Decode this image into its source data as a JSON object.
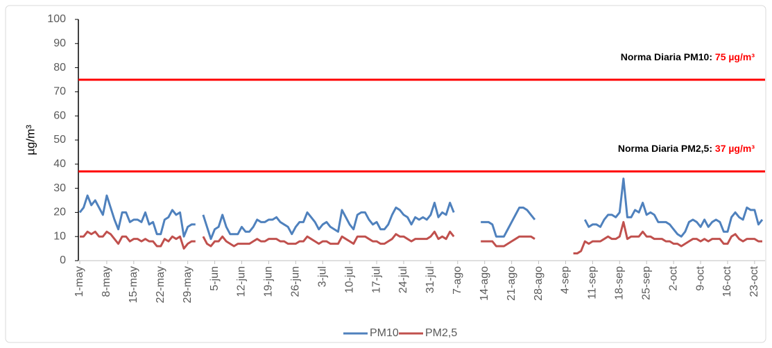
{
  "chart_data": {
    "type": "line",
    "y_label": "µg/m³",
    "ylim": [
      0,
      100
    ],
    "yticks": [
      0,
      10,
      20,
      30,
      40,
      50,
      60,
      70,
      80,
      90,
      100
    ],
    "grid": false,
    "legend": "bottom",
    "categories": [
      "1-may",
      null,
      null,
      null,
      null,
      null,
      null,
      "8-may",
      null,
      null,
      null,
      null,
      null,
      null,
      "15-may",
      null,
      null,
      null,
      null,
      null,
      null,
      "22-may",
      null,
      null,
      null,
      null,
      null,
      null,
      "29-may",
      null,
      null,
      null,
      null,
      null,
      null,
      "5-jun",
      null,
      null,
      null,
      null,
      null,
      null,
      "12-jun",
      null,
      null,
      null,
      null,
      null,
      null,
      "19-jun",
      null,
      null,
      null,
      null,
      null,
      null,
      "26-jun",
      null,
      null,
      null,
      null,
      null,
      null,
      "3-jul",
      null,
      null,
      null,
      null,
      null,
      null,
      "10-jul",
      null,
      null,
      null,
      null,
      null,
      null,
      "17-jul",
      null,
      null,
      null,
      null,
      null,
      null,
      "24-jul",
      null,
      null,
      null,
      null,
      null,
      null,
      "31-jul",
      null,
      null,
      null,
      null,
      null,
      null,
      "7-ago",
      null,
      null,
      null,
      null,
      null,
      null,
      "14-ago",
      null,
      null,
      null,
      null,
      null,
      null,
      "21-ago",
      null,
      null,
      null,
      null,
      null,
      null,
      "28-ago",
      null,
      null,
      null,
      null,
      null,
      null,
      "4-sep",
      null,
      null,
      null,
      null,
      null,
      null,
      "11-sep",
      null,
      null,
      null,
      null,
      null,
      null,
      "18-sep",
      null,
      null,
      null,
      null,
      null,
      null,
      "25-sep",
      null,
      null,
      null,
      null,
      null,
      null,
      "2-oct",
      null,
      null,
      null,
      null,
      null,
      null,
      "9-oct",
      null,
      null,
      null,
      null,
      null,
      null,
      "16-oct",
      null,
      null,
      null,
      null,
      null,
      null,
      "23-oct",
      null,
      null
    ],
    "series": [
      {
        "name": "PM10",
        "color": "#4f81bd",
        "values": [
          20,
          22,
          27,
          23,
          25,
          22,
          19,
          27,
          22,
          17,
          13,
          20,
          20,
          16,
          17,
          17,
          16,
          20,
          15,
          16,
          11,
          11,
          17,
          18,
          21,
          19,
          20,
          10,
          14,
          15,
          15,
          null,
          19,
          14,
          9,
          13,
          14,
          19,
          14,
          11,
          11,
          11,
          14,
          12,
          12,
          14,
          17,
          16,
          16,
          17,
          17,
          18,
          16,
          15,
          14,
          11,
          14,
          16,
          16,
          20,
          18,
          16,
          13,
          15,
          16,
          14,
          13,
          12,
          21,
          18,
          15,
          13,
          19,
          20,
          20,
          17,
          15,
          16,
          13,
          13,
          15,
          19,
          22,
          21,
          19,
          18,
          15,
          18,
          17,
          18,
          17,
          19,
          24,
          18,
          20,
          19,
          24,
          20,
          null,
          null,
          null,
          null,
          null,
          null,
          16,
          16,
          16,
          15,
          10,
          10,
          10,
          13,
          16,
          19,
          22,
          22,
          21,
          19,
          17,
          null,
          null,
          null,
          null,
          null,
          null,
          null,
          null,
          null,
          null,
          null,
          null,
          17,
          14,
          15,
          15,
          14,
          17,
          19,
          19,
          18,
          20,
          34,
          18,
          18,
          21,
          20,
          24,
          19,
          20,
          19,
          16,
          16,
          16,
          15,
          13,
          11,
          10,
          12,
          16,
          17,
          16,
          14,
          17,
          14,
          16,
          17,
          16,
          12,
          12,
          18,
          20,
          18,
          17,
          22,
          21,
          21,
          15,
          17
        ]
      },
      {
        "name": "PM2,5",
        "color": "#c0504d",
        "values": [
          10,
          10,
          12,
          11,
          12,
          10,
          10,
          12,
          11,
          9,
          7,
          10,
          10,
          8,
          9,
          9,
          8,
          9,
          8,
          8,
          6,
          6,
          9,
          8,
          10,
          9,
          10,
          5,
          7,
          8,
          8,
          null,
          10,
          7,
          6,
          8,
          8,
          10,
          8,
          7,
          6,
          7,
          7,
          7,
          7,
          8,
          9,
          8,
          8,
          9,
          9,
          9,
          8,
          8,
          7,
          7,
          7,
          8,
          8,
          10,
          9,
          8,
          7,
          8,
          8,
          7,
          7,
          7,
          10,
          9,
          8,
          7,
          10,
          10,
          10,
          9,
          8,
          8,
          7,
          7,
          8,
          9,
          11,
          10,
          10,
          9,
          8,
          9,
          9,
          9,
          9,
          10,
          12,
          9,
          10,
          9,
          12,
          10,
          null,
          null,
          null,
          null,
          null,
          null,
          8,
          8,
          8,
          8,
          6,
          6,
          6,
          7,
          8,
          9,
          10,
          10,
          10,
          10,
          9,
          null,
          null,
          null,
          null,
          null,
          null,
          null,
          null,
          null,
          3,
          3,
          4,
          8,
          7,
          8,
          8,
          8,
          9,
          10,
          9,
          9,
          10,
          16,
          9,
          10,
          10,
          10,
          12,
          10,
          10,
          9,
          9,
          9,
          8,
          8,
          7,
          7,
          6,
          7,
          8,
          9,
          9,
          8,
          9,
          8,
          9,
          9,
          9,
          7,
          7,
          10,
          11,
          9,
          8,
          9,
          9,
          9,
          8,
          8
        ]
      }
    ],
    "thresholds": [
      {
        "label": "Norma Diaria PM10:",
        "value": 75,
        "value_label": "75 µg/m³",
        "color": "#ff0000"
      },
      {
        "label": "Norma Diaria PM2,5:",
        "value": 37,
        "value_label": "37 µg/m³",
        "color": "#ff0000"
      }
    ]
  }
}
